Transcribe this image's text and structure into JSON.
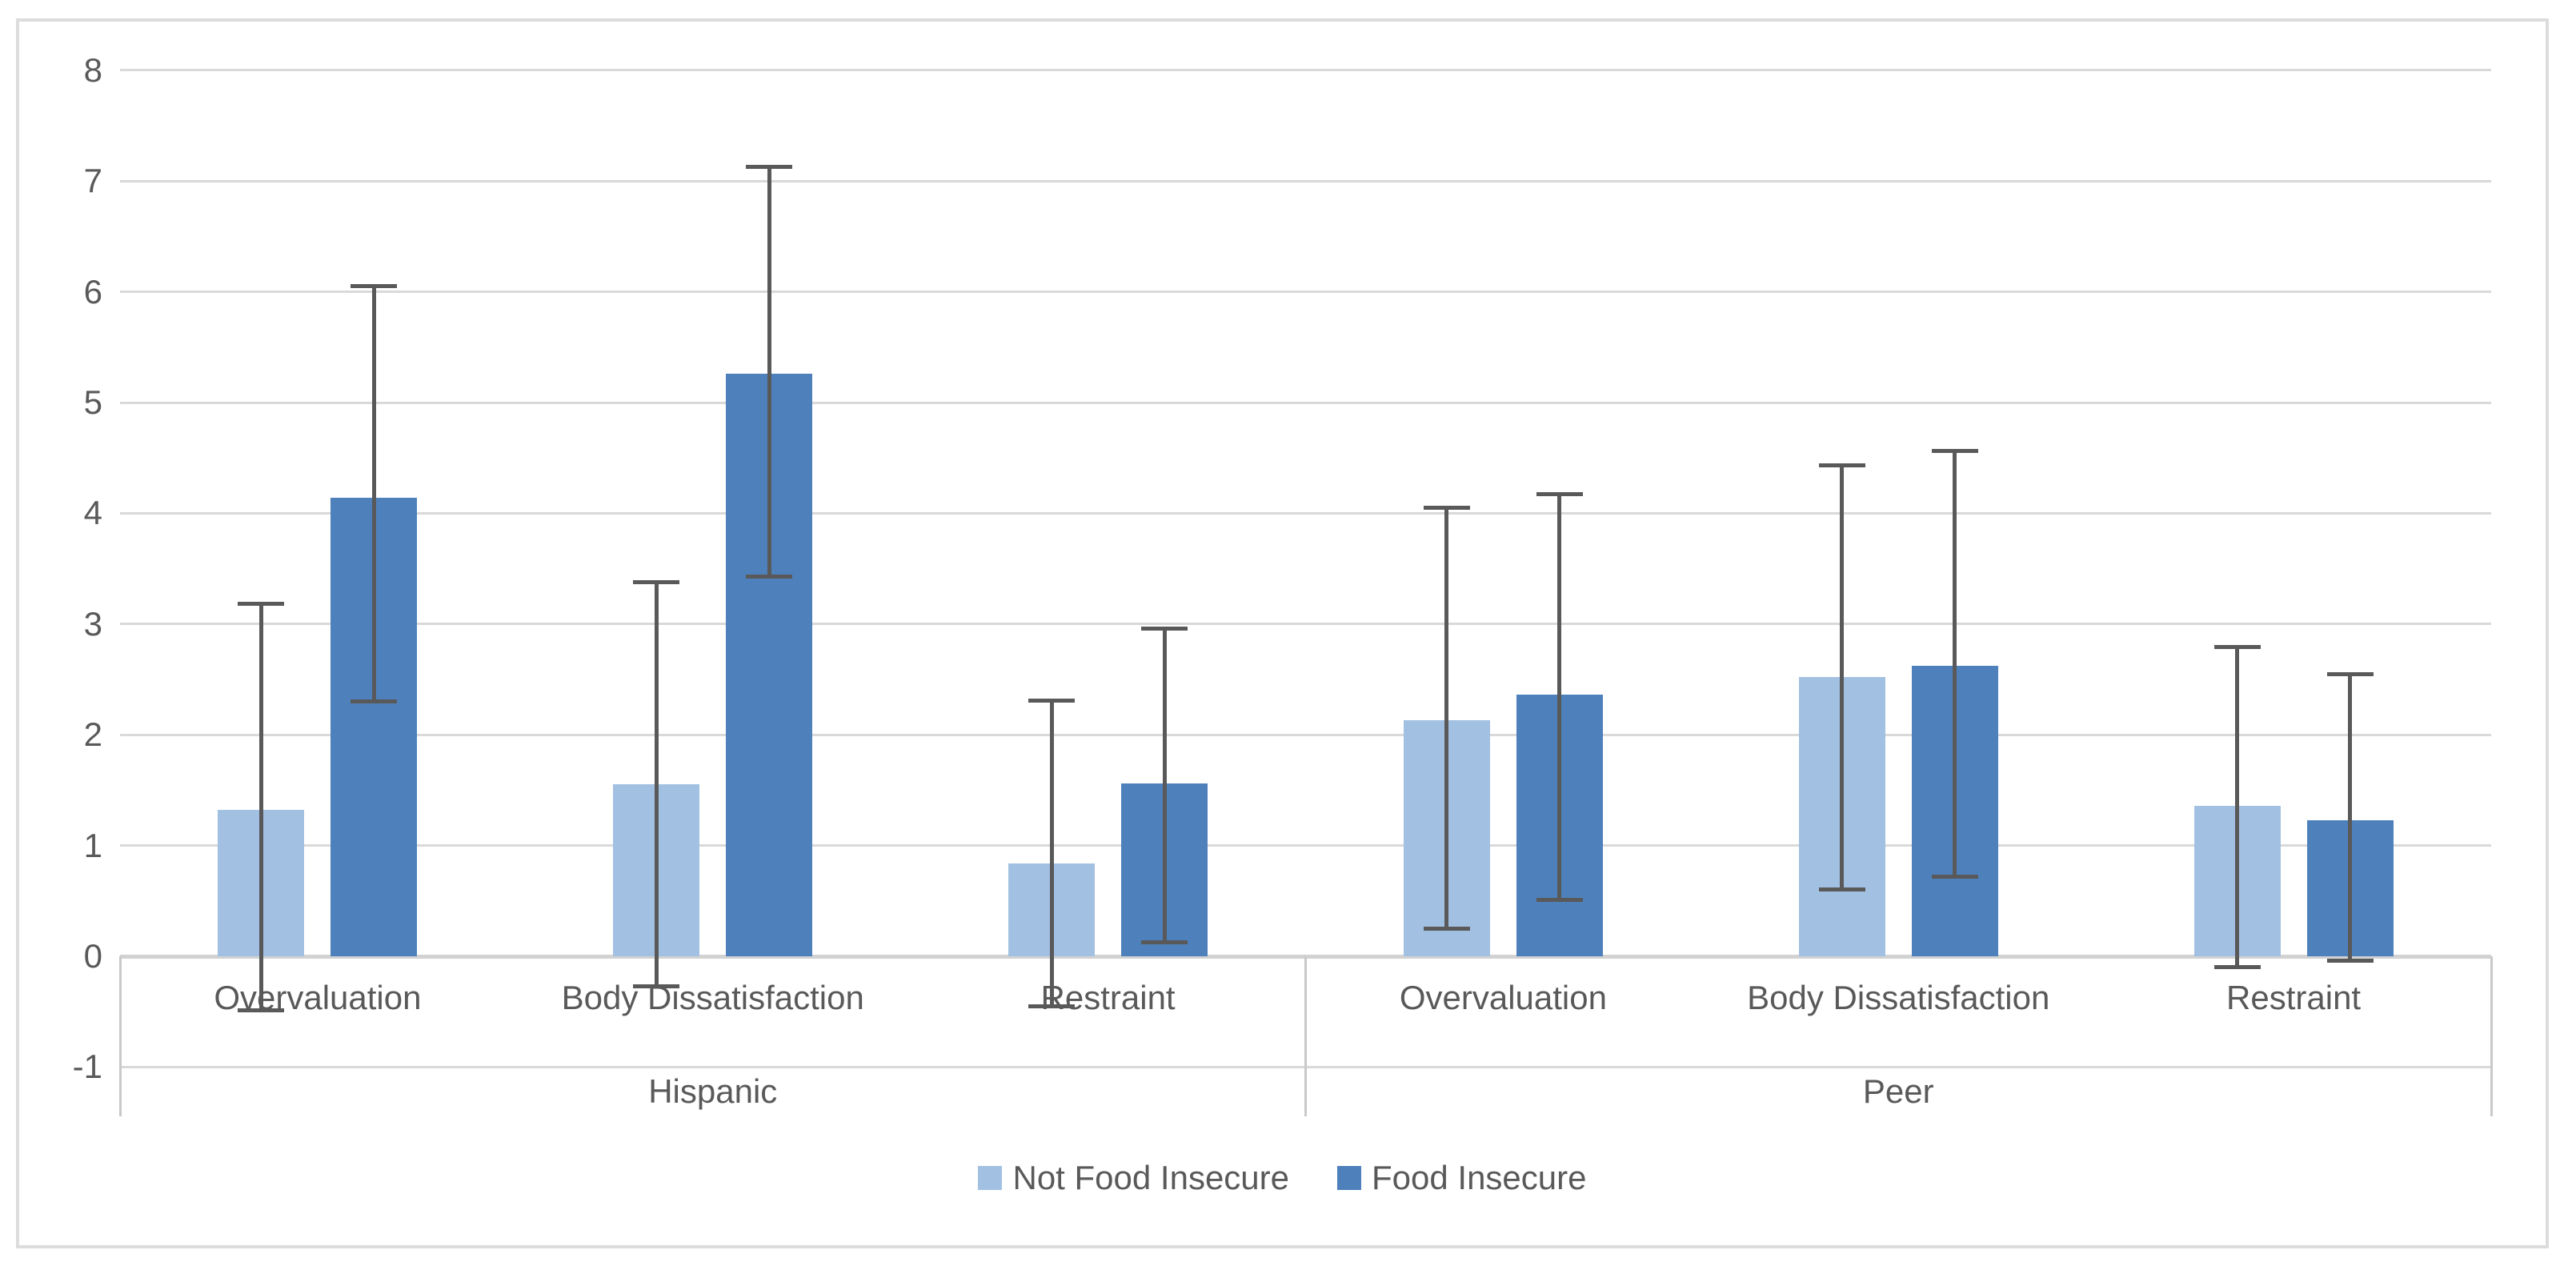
{
  "chart_data": {
    "type": "bar",
    "title": "",
    "groups": [
      "Hispanic",
      "Peer"
    ],
    "categories": [
      "Overvaluation",
      "Body Dissatisfaction",
      "Restraint"
    ],
    "series": [
      {
        "name": "Not Food Insecure",
        "color": "#a2c0e2",
        "values": {
          "Hispanic": [
            1.32,
            1.55,
            0.84
          ],
          "Peer": [
            2.13,
            2.52,
            1.36
          ]
        },
        "error_low": {
          "Hispanic": [
            -0.49,
            -0.27,
            -0.45
          ],
          "Peer": [
            0.25,
            0.6,
            -0.1
          ]
        },
        "error_high": {
          "Hispanic": [
            3.18,
            3.38,
            2.31
          ],
          "Peer": [
            4.05,
            4.43,
            2.79
          ]
        }
      },
      {
        "name": "Food Insecure",
        "color": "#4e81bc",
        "values": {
          "Hispanic": [
            4.14,
            5.26,
            1.56
          ],
          "Peer": [
            2.36,
            2.62,
            1.23
          ]
        },
        "error_low": {
          "Hispanic": [
            2.3,
            3.43,
            0.13
          ],
          "Peer": [
            0.51,
            0.72,
            -0.04
          ]
        },
        "error_high": {
          "Hispanic": [
            6.05,
            7.13,
            2.96
          ],
          "Peer": [
            4.17,
            4.56,
            2.55
          ]
        }
      }
    ],
    "ylim": [
      -1,
      8
    ],
    "ytick_step": 1,
    "yticks": [
      "8",
      "7",
      "6",
      "5",
      "4",
      "3",
      "2",
      "1",
      "0",
      "-1"
    ],
    "grid": true,
    "legend_position": "bottom-center",
    "colors": {
      "gridline": "#d9d9d9",
      "axis_line": "#d2d2d2",
      "band_line": "#c9c9c9",
      "chart_border": "#dcdcdc",
      "text": "#595959",
      "error_bar": "#595959",
      "background": "#ffffff"
    }
  }
}
